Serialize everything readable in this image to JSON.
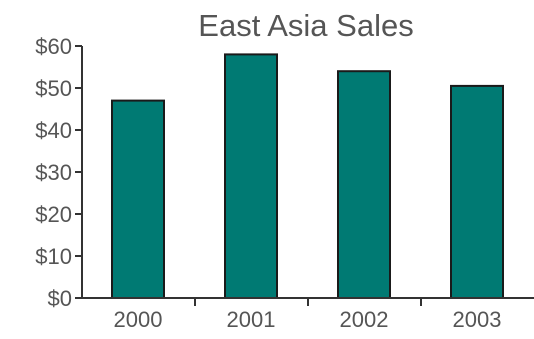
{
  "chart_data": {
    "type": "bar",
    "title": "East Asia Sales",
    "xlabel": "",
    "ylabel": "",
    "categories": [
      "2000",
      "2001",
      "2002",
      "2003"
    ],
    "series": [
      {
        "values": [
          47,
          58,
          54,
          50.5
        ]
      }
    ],
    "ylim": [
      0,
      60
    ],
    "yticks": [
      0,
      10,
      20,
      30,
      40,
      50,
      60
    ],
    "ytick_labels": [
      "$0",
      "$10",
      "$20",
      "$30",
      "$40",
      "$50",
      "$60"
    ],
    "grid": false,
    "legend": "none",
    "colors": {
      "bar": "#007a73",
      "bar_outline": "#1a1a1a",
      "axis": "#333333",
      "text": "#555555"
    }
  }
}
